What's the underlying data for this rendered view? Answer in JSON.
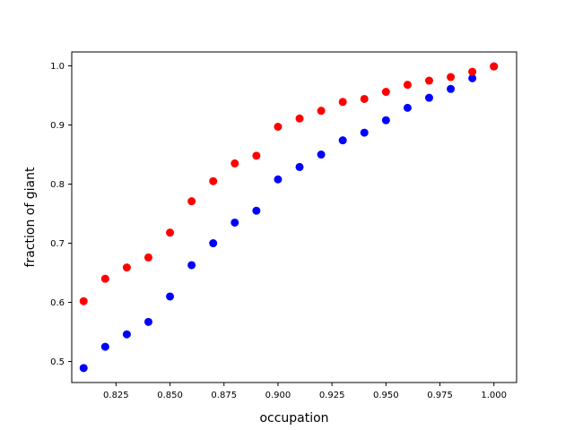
{
  "chart_data": {
    "type": "scatter",
    "title": "",
    "xlabel": "occupation",
    "ylabel": "fraction of giant",
    "xlim": [
      0.8045,
      1.0105
    ],
    "ylim": [
      0.4645,
      1.0235
    ],
    "xticks": [
      0.825,
      0.85,
      0.875,
      0.9,
      0.925,
      0.95,
      0.975,
      1.0
    ],
    "xtick_labels": [
      "0.825",
      "0.850",
      "0.875",
      "0.900",
      "0.925",
      "0.950",
      "0.975",
      "1.000"
    ],
    "yticks": [
      0.5,
      0.6,
      0.7,
      0.8,
      0.9,
      1.0
    ],
    "ytick_labels": [
      "0.5",
      "0.6",
      "0.7",
      "0.8",
      "0.9",
      "1.0"
    ],
    "grid": false,
    "legend": "none",
    "series": [
      {
        "color": "#0000ff",
        "points": [
          [
            0.81,
            0.489
          ],
          [
            0.82,
            0.525
          ],
          [
            0.83,
            0.546
          ],
          [
            0.84,
            0.567
          ],
          [
            0.85,
            0.61
          ],
          [
            0.86,
            0.663
          ],
          [
            0.87,
            0.7
          ],
          [
            0.88,
            0.735
          ],
          [
            0.89,
            0.755
          ],
          [
            0.9,
            0.808
          ],
          [
            0.91,
            0.829
          ],
          [
            0.92,
            0.85
          ],
          [
            0.93,
            0.874
          ],
          [
            0.94,
            0.887
          ],
          [
            0.95,
            0.908
          ],
          [
            0.96,
            0.929
          ],
          [
            0.97,
            0.946
          ],
          [
            0.98,
            0.961
          ],
          [
            0.99,
            0.979
          ],
          [
            1.0,
            0.999
          ]
        ]
      },
      {
        "color": "#ff0000",
        "points": [
          [
            0.81,
            0.602
          ],
          [
            0.82,
            0.64
          ],
          [
            0.83,
            0.659
          ],
          [
            0.84,
            0.676
          ],
          [
            0.85,
            0.718
          ],
          [
            0.86,
            0.771
          ],
          [
            0.87,
            0.805
          ],
          [
            0.88,
            0.835
          ],
          [
            0.89,
            0.848
          ],
          [
            0.9,
            0.897
          ],
          [
            0.91,
            0.911
          ],
          [
            0.92,
            0.924
          ],
          [
            0.93,
            0.939
          ],
          [
            0.94,
            0.944
          ],
          [
            0.95,
            0.956
          ],
          [
            0.96,
            0.968
          ],
          [
            0.97,
            0.975
          ],
          [
            0.98,
            0.981
          ],
          [
            0.99,
            0.99
          ],
          [
            1.0,
            0.999
          ]
        ]
      }
    ]
  }
}
